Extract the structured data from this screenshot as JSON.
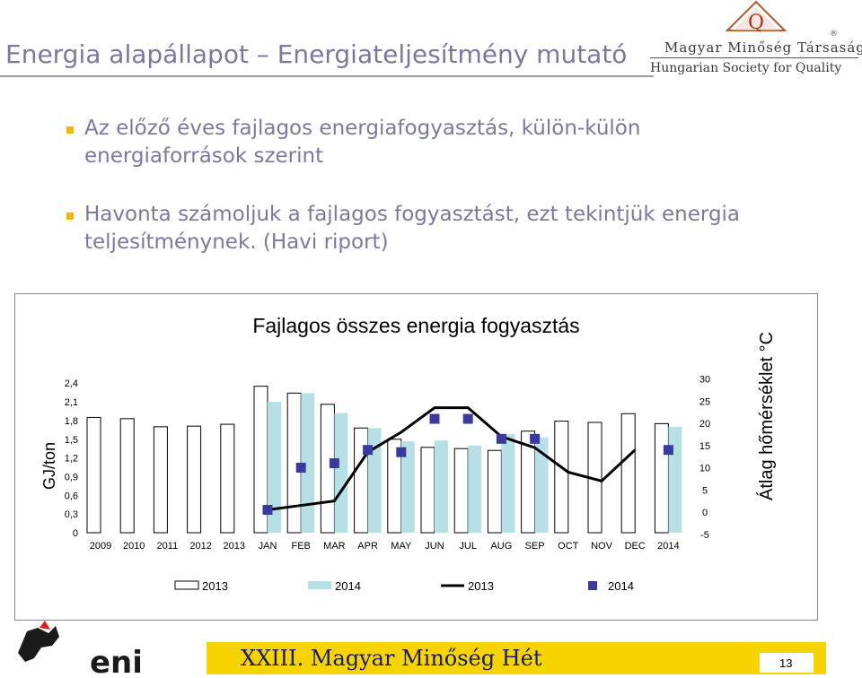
{
  "slide": {
    "title": "Energia alapállapot – Energiateljesítmény mutató",
    "bullets": [
      "Az előző éves fajlagos energiafogyasztás, külön-külön energiaforrások szerint",
      "Havonta számoljuk a fajlagos fogyasztást, ezt tekintjük energia teljesítménynek. (Havi riport)"
    ],
    "logo": {
      "mark": "Q",
      "line1": "Magyar Minőség Társaság",
      "line2": "Hungarian Society for Quality",
      "registered": "®"
    },
    "footer": {
      "text": "XXIII. Magyar Minőség Hét",
      "page_number": "13",
      "brand_logo": "eni"
    }
  },
  "chart_data": {
    "type": "bar",
    "title": "Fajlagos összes energia fogyasztás",
    "ylabel": "GJ/ton",
    "y2label": "Átlag hőmérséklet °C",
    "categories": [
      "2009",
      "2010",
      "2011",
      "2012",
      "2013",
      "JAN",
      "FEB",
      "MAR",
      "APR",
      "MAY",
      "JUN",
      "JUL",
      "AUG",
      "SEP",
      "OCT",
      "NOV",
      "DEC",
      "2014"
    ],
    "ylim": [
      0,
      2.4
    ],
    "yticks": [
      "0",
      "0,3",
      "0,6",
      "0,9",
      "1,2",
      "1,5",
      "1,8",
      "2,1",
      "2,4"
    ],
    "y2lim": [
      -5,
      30
    ],
    "y2ticks": [
      "-5",
      "0",
      "5",
      "10",
      "15",
      "20",
      "25",
      "30"
    ],
    "series": [
      {
        "name": "2013",
        "type": "bar",
        "color": "#ffffff",
        "values": [
          1.85,
          1.83,
          1.7,
          1.71,
          1.74,
          2.35,
          2.24,
          2.06,
          1.68,
          1.5,
          1.37,
          1.35,
          1.32,
          1.63,
          1.79,
          1.77,
          1.91,
          1.75
        ]
      },
      {
        "name": "2014",
        "type": "bar",
        "color": "#b7e0e6",
        "values": [
          null,
          null,
          null,
          null,
          null,
          2.1,
          2.24,
          1.92,
          1.68,
          1.47,
          1.48,
          1.4,
          1.58,
          1.53,
          null,
          null,
          null,
          1.7
        ]
      },
      {
        "name": "2013",
        "type": "line",
        "color": "#000000",
        "values": [
          null,
          null,
          null,
          null,
          null,
          0.5,
          1.5,
          2.5,
          13.5,
          18.0,
          23.5,
          23.5,
          17.0,
          14.5,
          9.0,
          7.0,
          14.0,
          null
        ]
      },
      {
        "name": "2014",
        "type": "markers",
        "color": "#3a3a9e",
        "values": [
          null,
          null,
          null,
          null,
          null,
          0.5,
          10.0,
          11.0,
          14.0,
          13.5,
          21.0,
          21.0,
          16.5,
          16.5,
          null,
          null,
          null,
          14.0
        ]
      }
    ],
    "legend": {
      "position": "bottom",
      "entries": [
        "2013",
        "2014",
        "2013",
        "2014"
      ]
    }
  }
}
